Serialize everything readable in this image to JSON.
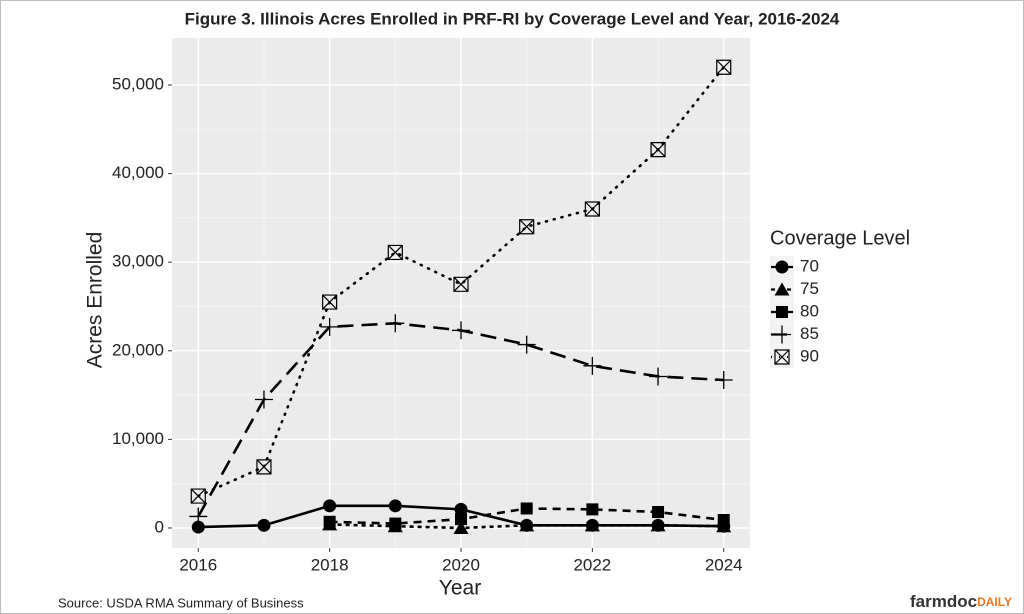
{
  "chart_data": {
    "type": "line",
    "title": "Figure 3. Illinois Acres Enrolled in PRF-RI by Coverage Level and Year, 2016-2024",
    "x_label": "Year",
    "y_label": "Acres Enrolled",
    "x": [
      2016,
      2017,
      2018,
      2019,
      2020,
      2021,
      2022,
      2023,
      2024
    ],
    "xlim": [
      2015.6,
      2024.4
    ],
    "xticks": [
      2016,
      2018,
      2020,
      2022,
      2024
    ],
    "ylim": [
      -2260,
      55300
    ],
    "yticks": [
      0,
      {
        "value": 10000,
        "label": "10,000"
      },
      {
        "value": 20000,
        "label": "20,000"
      },
      {
        "value": 30000,
        "label": "30,000"
      },
      {
        "value": 40000,
        "label": "40,000"
      },
      {
        "value": 50000,
        "label": "50,000"
      }
    ],
    "grid": true,
    "legend_title": "Coverage Level",
    "series": [
      {
        "name": "70",
        "color": "#000000",
        "marker": "circle",
        "dash": "none",
        "values": [
          100,
          300,
          2500,
          2500,
          2100,
          300,
          300,
          300,
          200
        ]
      },
      {
        "name": "75",
        "color": "#000000",
        "marker": "triangle",
        "dash": "4,4",
        "values": [
          null,
          null,
          400,
          200,
          0,
          300,
          300,
          300,
          200
        ]
      },
      {
        "name": "80",
        "color": "#000000",
        "marker": "square",
        "dash": "8,6",
        "values": [
          null,
          null,
          700,
          500,
          1000,
          2200,
          2100,
          1800,
          900
        ]
      },
      {
        "name": "85",
        "color": "#000000",
        "marker": "plus",
        "dash": "16,8",
        "values": [
          1300,
          14500,
          22700,
          23100,
          22300,
          20700,
          18300,
          17100,
          16700
        ]
      },
      {
        "name": "90",
        "color": "#000000",
        "marker": "boxx",
        "dash": "1,7",
        "values": [
          3600,
          6900,
          25500,
          31100,
          27500,
          34000,
          36000,
          42700,
          52000
        ]
      }
    ],
    "source": "Source: USDA RMA Summary of Business",
    "logo": {
      "main": "farmdoc",
      "suffix": "DAILY"
    }
  }
}
